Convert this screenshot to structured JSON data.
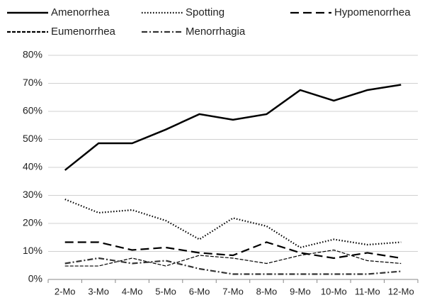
{
  "chart_data": {
    "type": "line",
    "categories": [
      "2-Mo",
      "3-Mo",
      "4-Mo",
      "5-Mo",
      "6-Mo",
      "7-Mo",
      "8-Mo",
      "9-Mo",
      "10-Mo",
      "11-Mo",
      "12-Mo"
    ],
    "series": [
      {
        "name": "Amenorrhea",
        "color": "#000000",
        "dash": "none",
        "values": [
          39,
          48.6,
          48.6,
          53.5,
          59,
          57,
          59,
          67.6,
          63.8,
          67.6,
          69.5
        ]
      },
      {
        "name": "Spotting",
        "color": "#000000",
        "dash": "1.5 2.5",
        "values": [
          28.6,
          23.8,
          24.8,
          21,
          14.3,
          21.9,
          19,
          11.4,
          14.3,
          12.4,
          13.3
        ]
      },
      {
        "name": "Hypomenorrhea",
        "color": "#000000",
        "dash": "12 6",
        "values": [
          13.3,
          13.3,
          10.5,
          11.4,
          9.5,
          8.6,
          13.3,
          9.5,
          7.6,
          9.5,
          7.6
        ]
      },
      {
        "name": "Eumenorrhea",
        "color": "#000000",
        "dash": "5 2",
        "values": [
          4.8,
          4.8,
          7.6,
          4.8,
          8.6,
          7.6,
          5.7,
          8.6,
          10.5,
          6.7,
          5.7
        ]
      },
      {
        "name": "Menorrhagia",
        "color": "#333333",
        "dash": "8 3 2 3",
        "values": [
          5.7,
          7.6,
          5.7,
          6.7,
          3.8,
          1.9,
          1.9,
          1.9,
          1.9,
          1.9,
          2.9
        ]
      }
    ],
    "ylim": [
      0,
      80
    ],
    "yticks": [
      {
        "value": 0,
        "label": "0%"
      },
      {
        "value": 10,
        "label": "10%"
      },
      {
        "value": 20,
        "label": "20%"
      },
      {
        "value": 30,
        "label": "30%"
      },
      {
        "value": 40,
        "label": "40%"
      },
      {
        "value": 50,
        "label": "50%"
      },
      {
        "value": 60,
        "label": "60%"
      },
      {
        "value": 70,
        "label": "70%"
      },
      {
        "value": 80,
        "label": "80%"
      }
    ],
    "grid": true
  }
}
